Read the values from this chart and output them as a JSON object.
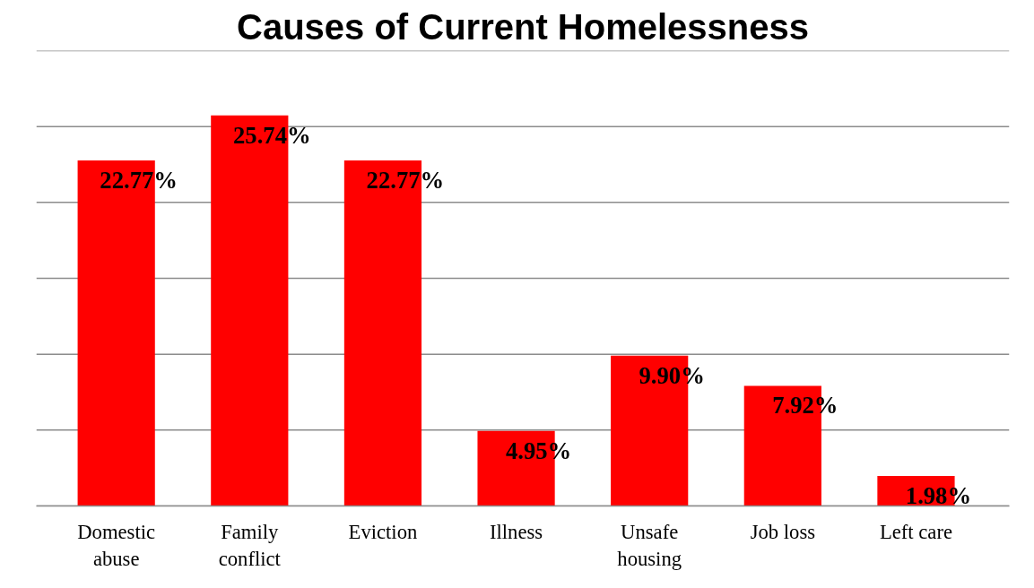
{
  "chart_data": {
    "type": "bar",
    "title": "Causes of Current Homelessness",
    "categories": [
      "Domestic\nabuse",
      "Family\nconflict",
      "Eviction",
      "Illness",
      "Unsafe\nhousing",
      "Job loss",
      "Left care"
    ],
    "values": [
      22.77,
      25.74,
      22.77,
      4.95,
      9.9,
      7.92,
      1.98
    ],
    "value_labels": [
      "22.77%",
      "25.74%",
      "22.77%",
      "4.95%",
      "9.90%",
      "7.92%",
      "1.98%"
    ],
    "color": "#ff0000",
    "ylim": [
      0,
      30
    ],
    "yticks": [
      {
        "value": 0,
        "label": null
      },
      {
        "value": 5,
        "label": null
      },
      {
        "value": 10,
        "label": null
      },
      {
        "value": 15,
        "label": null
      },
      {
        "value": 20,
        "label": null
      },
      {
        "value": 25,
        "label": null
      },
      {
        "value": 30,
        "label": null
      }
    ],
    "tick_labels": "x",
    "grid": "y"
  }
}
